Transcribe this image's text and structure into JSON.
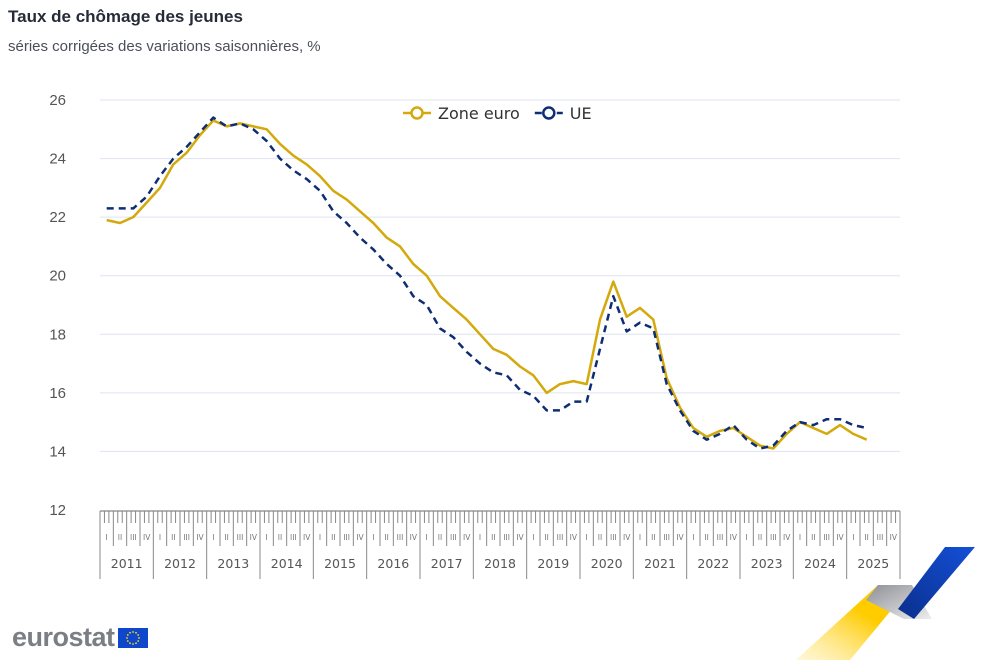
{
  "header": {
    "title": "Taux de chômage des jeunes",
    "subtitle": "séries corrigées des variations saisonnières, %"
  },
  "legend": {
    "items": [
      {
        "label": "Zone euro",
        "color": "#d4a90c",
        "style": "solid"
      },
      {
        "label": "UE",
        "color": "#0e2e74",
        "style": "dashed"
      }
    ]
  },
  "branding": {
    "logo_text": "eurostat"
  },
  "chart_data": {
    "type": "line",
    "title": "Taux de chômage des jeunes",
    "subtitle": "séries corrigées des variations saisonnières, %",
    "xlabel": "",
    "ylabel": "",
    "ylim": [
      12,
      26
    ],
    "yticks": [
      12,
      14,
      16,
      18,
      20,
      22,
      24,
      26
    ],
    "grid": true,
    "legend_position": "top-center",
    "x_years": [
      "2011",
      "2012",
      "2013",
      "2014",
      "2015",
      "2016",
      "2017",
      "2018",
      "2019",
      "2020",
      "2021",
      "2022",
      "2023",
      "2024",
      "2025"
    ],
    "x_quarters": [
      "I",
      "II",
      "III",
      "IV"
    ],
    "x": [
      "2011Q1",
      "2011Q2",
      "2011Q3",
      "2011Q4",
      "2012Q1",
      "2012Q2",
      "2012Q3",
      "2012Q4",
      "2013Q1",
      "2013Q2",
      "2013Q3",
      "2013Q4",
      "2014Q1",
      "2014Q2",
      "2014Q3",
      "2014Q4",
      "2015Q1",
      "2015Q2",
      "2015Q3",
      "2015Q4",
      "2016Q1",
      "2016Q2",
      "2016Q3",
      "2016Q4",
      "2017Q1",
      "2017Q2",
      "2017Q3",
      "2017Q4",
      "2018Q1",
      "2018Q2",
      "2018Q3",
      "2018Q4",
      "2019Q1",
      "2019Q2",
      "2019Q3",
      "2019Q4",
      "2020Q1",
      "2020Q2",
      "2020Q3",
      "2020Q4",
      "2021Q1",
      "2021Q2",
      "2021Q3",
      "2021Q4",
      "2022Q1",
      "2022Q2",
      "2022Q3",
      "2022Q4",
      "2023Q1",
      "2023Q2",
      "2023Q3",
      "2023Q4",
      "2024Q1",
      "2024Q2",
      "2024Q3",
      "2024Q4",
      "2025Q1",
      "2025Q2"
    ],
    "series": [
      {
        "name": "Zone euro",
        "color": "#d4a90c",
        "style": "solid",
        "values": [
          21.9,
          21.8,
          22.0,
          22.5,
          23.0,
          23.8,
          24.2,
          24.8,
          25.3,
          25.1,
          25.2,
          25.1,
          25.0,
          24.5,
          24.1,
          23.8,
          23.4,
          22.9,
          22.6,
          22.2,
          21.8,
          21.3,
          21.0,
          20.4,
          20.0,
          19.3,
          18.9,
          18.5,
          18.0,
          17.5,
          17.3,
          16.9,
          16.6,
          16.0,
          16.3,
          16.4,
          16.3,
          18.5,
          19.8,
          18.6,
          18.9,
          18.5,
          16.5,
          15.5,
          14.8,
          14.5,
          14.7,
          14.8,
          14.5,
          14.2,
          14.1,
          14.6,
          15.0,
          14.8,
          14.6,
          14.9,
          14.6,
          14.4
        ]
      },
      {
        "name": "UE",
        "color": "#0e2e74",
        "style": "dashed",
        "values": [
          22.3,
          22.3,
          22.3,
          22.7,
          23.4,
          24.0,
          24.4,
          24.9,
          25.4,
          25.1,
          25.2,
          25.0,
          24.6,
          24.0,
          23.6,
          23.3,
          22.9,
          22.2,
          21.8,
          21.3,
          20.9,
          20.4,
          20.0,
          19.3,
          19.0,
          18.2,
          17.9,
          17.4,
          17.0,
          16.7,
          16.6,
          16.1,
          15.9,
          15.4,
          15.4,
          15.7,
          15.7,
          17.5,
          19.3,
          18.1,
          18.4,
          18.2,
          16.3,
          15.4,
          14.7,
          14.4,
          14.6,
          14.9,
          14.4,
          14.1,
          14.2,
          14.7,
          15.0,
          14.9,
          15.1,
          15.1,
          14.9,
          14.8
        ]
      }
    ]
  }
}
